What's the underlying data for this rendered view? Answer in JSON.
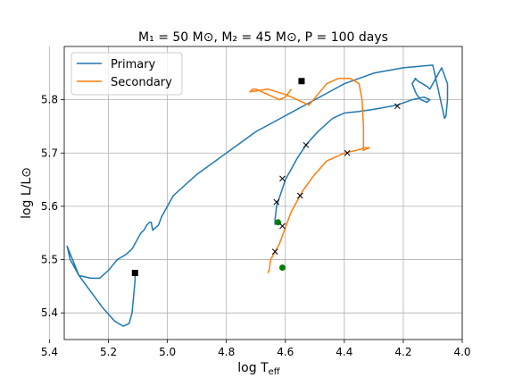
{
  "chart_data": {
    "type": "line",
    "title": "M₁ = 50 M⊙, M₂ = 45 M⊙, P = 100 days",
    "xlabel": "log T",
    "xlabel_sub": "eff",
    "ylabel": "log L/L⊙",
    "xlim": [
      5.35,
      4.0
    ],
    "ylim": [
      5.35,
      5.9
    ],
    "x_inverted": true,
    "xticks": [
      5.4,
      5.2,
      5.0,
      4.8,
      4.6,
      4.4,
      4.2,
      4.0
    ],
    "xtick_labels": [
      "5.4",
      "5.2",
      "5.0",
      "4.8",
      "4.6",
      "4.4",
      "4.2",
      "4.0"
    ],
    "yticks": [
      5.4,
      5.5,
      5.6,
      5.7,
      5.8
    ],
    "ytick_labels": [
      "5.4",
      "5.5",
      "5.6",
      "5.7",
      "5.8"
    ],
    "grid": true,
    "legend_position": "top-left",
    "series": [
      {
        "name": "Primary",
        "color": "#1f77b4",
        "x": [
          4.635,
          4.635,
          4.63,
          4.6,
          4.56,
          4.53,
          4.49,
          4.44,
          4.4,
          4.35,
          4.3,
          4.25,
          4.22,
          4.17,
          4.13,
          4.11,
          4.12,
          4.14,
          4.155,
          4.17,
          4.158,
          4.16,
          4.15,
          4.135,
          4.12,
          4.11,
          4.09,
          4.07,
          4.05,
          4.05,
          4.055,
          4.06,
          4.1,
          4.2,
          4.3,
          4.4,
          4.5,
          4.6,
          4.7,
          4.8,
          4.9,
          4.95,
          4.98,
          5.0,
          5.02,
          5.03,
          5.05,
          5.055,
          5.06,
          5.07,
          5.075,
          5.08,
          5.09,
          5.1,
          5.105,
          5.11,
          5.12,
          5.14,
          5.17,
          5.2,
          5.23,
          5.26,
          5.3,
          5.34,
          5.33,
          5.3,
          5.26,
          5.22,
          5.18,
          5.15,
          5.13,
          5.12,
          5.11,
          5.11
        ],
        "y": [
          5.565,
          5.575,
          5.6,
          5.65,
          5.69,
          5.715,
          5.74,
          5.765,
          5.775,
          5.778,
          5.782,
          5.787,
          5.79,
          5.8,
          5.805,
          5.8,
          5.795,
          5.8,
          5.81,
          5.83,
          5.84,
          5.84,
          5.835,
          5.83,
          5.825,
          5.82,
          5.84,
          5.86,
          5.83,
          5.8,
          5.77,
          5.765,
          5.865,
          5.86,
          5.85,
          5.83,
          5.8,
          5.77,
          5.74,
          5.7,
          5.66,
          5.635,
          5.62,
          5.6,
          5.58,
          5.565,
          5.555,
          5.57,
          5.57,
          5.565,
          5.56,
          5.555,
          5.55,
          5.54,
          5.535,
          5.53,
          5.52,
          5.51,
          5.5,
          5.48,
          5.465,
          5.465,
          5.47,
          5.525,
          5.5,
          5.47,
          5.44,
          5.41,
          5.385,
          5.375,
          5.38,
          5.4,
          5.46,
          5.475
        ]
      },
      {
        "name": "Secondary",
        "color": "#ff7f0e",
        "x": [
          4.66,
          4.655,
          4.65,
          4.62,
          4.58,
          4.54,
          4.5,
          4.46,
          4.4,
          4.36,
          4.34,
          4.33,
          4.315,
          4.335,
          4.335,
          4.34,
          4.35,
          4.38,
          4.42,
          4.46,
          4.49,
          4.52,
          4.56,
          4.6,
          4.66,
          4.72,
          4.71,
          4.7,
          4.66,
          4.62,
          4.6,
          4.58
        ],
        "y": [
          5.475,
          5.48,
          5.5,
          5.53,
          5.59,
          5.63,
          5.66,
          5.685,
          5.7,
          5.705,
          5.708,
          5.71,
          5.71,
          5.705,
          5.75,
          5.8,
          5.83,
          5.84,
          5.84,
          5.83,
          5.81,
          5.79,
          5.8,
          5.81,
          5.82,
          5.815,
          5.82,
          5.82,
          5.81,
          5.8,
          5.805,
          5.82
        ]
      }
    ],
    "markers": [
      {
        "name": "start-primary-square",
        "shape": "square",
        "color": "#000000",
        "x": 5.11,
        "y": 5.475
      },
      {
        "name": "end-secondary-square",
        "shape": "square",
        "color": "#000000",
        "x": 4.545,
        "y": 5.835
      },
      {
        "name": "green-dot",
        "shape": "circle",
        "color": "#008000",
        "x": 4.625,
        "y": 5.57
      },
      {
        "name": "green-dot",
        "shape": "circle",
        "color": "#008000",
        "x": 4.61,
        "y": 5.485
      },
      {
        "name": "cross-marker",
        "shape": "x",
        "color": "#000000",
        "x": 4.63,
        "y": 5.608
      },
      {
        "name": "cross-marker",
        "shape": "x",
        "color": "#000000",
        "x": 4.61,
        "y": 5.652
      },
      {
        "name": "cross-marker",
        "shape": "x",
        "color": "#000000",
        "x": 4.53,
        "y": 5.715
      },
      {
        "name": "cross-marker",
        "shape": "x",
        "color": "#000000",
        "x": 4.22,
        "y": 5.788
      },
      {
        "name": "cross-marker",
        "shape": "x",
        "color": "#000000",
        "x": 4.61,
        "y": 5.563
      },
      {
        "name": "cross-marker",
        "shape": "x",
        "color": "#000000",
        "x": 4.635,
        "y": 5.515
      },
      {
        "name": "cross-marker",
        "shape": "x",
        "color": "#000000",
        "x": 4.55,
        "y": 5.62
      },
      {
        "name": "cross-marker",
        "shape": "x",
        "color": "#000000",
        "x": 4.39,
        "y": 5.7
      }
    ]
  }
}
